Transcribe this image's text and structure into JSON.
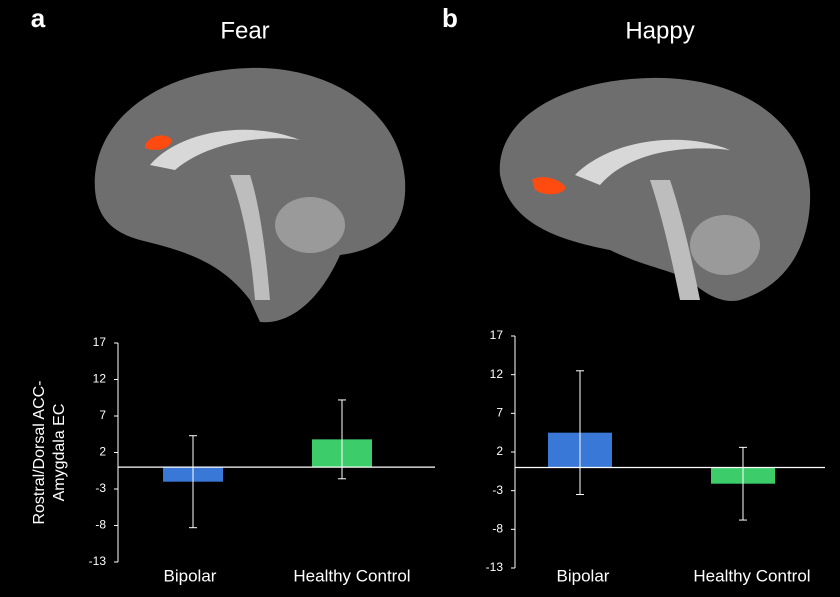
{
  "chart_data": [
    {
      "type": "bar",
      "panel_label": "a",
      "title": "Fear",
      "ylabel": [
        "Rostral/Dorsal ACC-",
        "Amygdala EC"
      ],
      "categories": [
        "Bipolar",
        "Healthy Control"
      ],
      "values": [
        -2,
        3.8
      ],
      "errors": [
        6.3,
        5.4
      ],
      "colors": [
        "#3a78d8",
        "#3ccc6a"
      ],
      "ylim": [
        -13,
        17
      ],
      "yticks": [
        -13,
        -8,
        -3,
        2,
        7,
        12,
        17
      ]
    },
    {
      "type": "bar",
      "panel_label": "b",
      "title": "Happy",
      "categories": [
        "Bipolar",
        "Healthy Control"
      ],
      "values": [
        4.5,
        -2.1
      ],
      "errors": [
        8,
        4.7
      ],
      "colors": [
        "#3a78d8",
        "#3ccc6a"
      ],
      "ylim": [
        -13,
        17
      ],
      "yticks": [
        -13,
        -8,
        -3,
        2,
        7,
        12,
        17
      ]
    }
  ]
}
